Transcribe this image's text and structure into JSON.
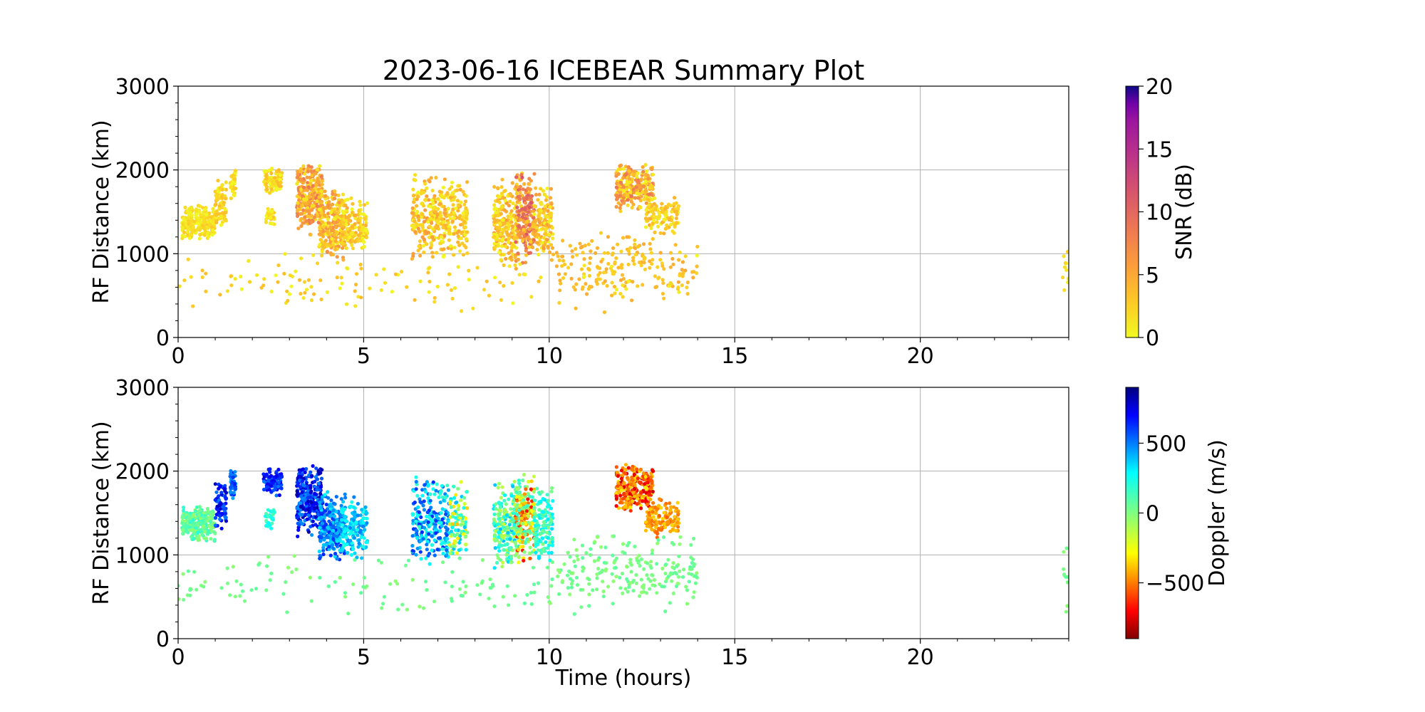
{
  "chart_data": [
    {
      "type": "scatter",
      "title": "2023-06-16 ICEBEAR Summary Plot",
      "ylabel": "RF Distance (km)",
      "xlim": [
        0,
        24
      ],
      "ylim": [
        0,
        3000
      ],
      "xticks": [
        "0",
        "5",
        "10",
        "15",
        "20"
      ],
      "yticks": [
        "0",
        "1000",
        "2000",
        "3000"
      ],
      "grid": true,
      "colorbar": {
        "label": "SNR (dB)",
        "range": [
          0,
          20
        ],
        "ticks": [
          "0",
          "5",
          "10",
          "15",
          "20"
        ],
        "colormap": "plasma_r"
      },
      "clusters": [
        {
          "x": [
            0.1,
            1.0
          ],
          "y": [
            1150,
            1600
          ],
          "n": 220,
          "value": [
            0,
            3
          ]
        },
        {
          "x": [
            1.0,
            1.3
          ],
          "y": [
            1300,
            1900
          ],
          "n": 70,
          "value": [
            0,
            4
          ]
        },
        {
          "x": [
            1.4,
            1.55
          ],
          "y": [
            1650,
            2050
          ],
          "n": 40,
          "value": [
            0,
            3
          ]
        },
        {
          "x": [
            2.3,
            2.8
          ],
          "y": [
            1700,
            2050
          ],
          "n": 90,
          "value": [
            0,
            4
          ]
        },
        {
          "x": [
            2.35,
            2.6
          ],
          "y": [
            1300,
            1600
          ],
          "n": 25,
          "value": [
            0,
            3
          ]
        },
        {
          "x": [
            3.2,
            3.9
          ],
          "y": [
            1200,
            2100
          ],
          "n": 300,
          "value": [
            1,
            9
          ]
        },
        {
          "x": [
            3.8,
            4.5
          ],
          "y": [
            900,
            1800
          ],
          "n": 260,
          "value": [
            0,
            7
          ]
        },
        {
          "x": [
            4.4,
            5.1
          ],
          "y": [
            950,
            1700
          ],
          "n": 140,
          "value": [
            0,
            5
          ]
        },
        {
          "x": [
            6.3,
            7.3
          ],
          "y": [
            850,
            2000
          ],
          "n": 240,
          "value": [
            0,
            6
          ]
        },
        {
          "x": [
            7.3,
            7.8
          ],
          "y": [
            950,
            1900
          ],
          "n": 110,
          "value": [
            0,
            5
          ]
        },
        {
          "x": [
            8.5,
            9.2
          ],
          "y": [
            800,
            1900
          ],
          "n": 220,
          "value": [
            0,
            6
          ]
        },
        {
          "x": [
            9.1,
            9.6
          ],
          "y": [
            850,
            2000
          ],
          "n": 200,
          "value": [
            2,
            12
          ]
        },
        {
          "x": [
            9.6,
            10.1
          ],
          "y": [
            900,
            1850
          ],
          "n": 140,
          "value": [
            0,
            6
          ]
        },
        {
          "x": [
            11.8,
            12.8
          ],
          "y": [
            1500,
            2100
          ],
          "n": 260,
          "value": [
            0,
            9
          ]
        },
        {
          "x": [
            12.6,
            13.5
          ],
          "y": [
            1200,
            1700
          ],
          "n": 120,
          "value": [
            0,
            5
          ]
        },
        {
          "x": [
            10.2,
            14.0
          ],
          "y": [
            400,
            1300
          ],
          "n": 180,
          "value": [
            2,
            5
          ]
        },
        {
          "x": [
            0.0,
            14.0
          ],
          "y": [
            250,
            1050
          ],
          "n": 150,
          "value": [
            0,
            4
          ]
        },
        {
          "x": [
            23.8,
            24.0
          ],
          "y": [
            300,
            1300
          ],
          "n": 10,
          "value": [
            0,
            3
          ]
        }
      ]
    },
    {
      "type": "scatter",
      "xlabel": "Time (hours)",
      "ylabel": "RF Distance (km)",
      "xlim": [
        0,
        24
      ],
      "ylim": [
        0,
        3000
      ],
      "xticks": [
        "0",
        "5",
        "10",
        "15",
        "20"
      ],
      "yticks": [
        "0",
        "1000",
        "2000",
        "3000"
      ],
      "grid": true,
      "colorbar": {
        "label": "Doppler (m/s)",
        "range": [
          -900,
          900
        ],
        "ticks": [
          "−500",
          "0",
          "500"
        ],
        "tick_values": [
          -500,
          0,
          500
        ],
        "colormap": "jet_r"
      },
      "clusters": [
        {
          "x": [
            0.1,
            1.0
          ],
          "y": [
            1150,
            1600
          ],
          "n": 220,
          "value": [
            -50,
            200
          ]
        },
        {
          "x": [
            1.0,
            1.3
          ],
          "y": [
            1300,
            1900
          ],
          "n": 70,
          "value": [
            500,
            800
          ]
        },
        {
          "x": [
            1.4,
            1.55
          ],
          "y": [
            1650,
            2050
          ],
          "n": 40,
          "value": [
            400,
            650
          ]
        },
        {
          "x": [
            2.3,
            2.8
          ],
          "y": [
            1700,
            2050
          ],
          "n": 90,
          "value": [
            500,
            750
          ]
        },
        {
          "x": [
            2.35,
            2.6
          ],
          "y": [
            1300,
            1600
          ],
          "n": 25,
          "value": [
            100,
            300
          ]
        },
        {
          "x": [
            3.2,
            3.9
          ],
          "y": [
            1200,
            2100
          ],
          "n": 300,
          "value": [
            450,
            850
          ]
        },
        {
          "x": [
            3.8,
            4.5
          ],
          "y": [
            900,
            1800
          ],
          "n": 260,
          "value": [
            300,
            650
          ]
        },
        {
          "x": [
            4.4,
            5.1
          ],
          "y": [
            950,
            1700
          ],
          "n": 140,
          "value": [
            200,
            500
          ]
        },
        {
          "x": [
            6.3,
            7.3
          ],
          "y": [
            850,
            2000
          ],
          "n": 240,
          "value": [
            150,
            650
          ]
        },
        {
          "x": [
            7.3,
            7.8
          ],
          "y": [
            950,
            1900
          ],
          "n": 110,
          "value": [
            -400,
            400
          ]
        },
        {
          "x": [
            8.5,
            9.2
          ],
          "y": [
            800,
            1900
          ],
          "n": 220,
          "value": [
            -200,
            400
          ]
        },
        {
          "x": [
            9.1,
            9.6
          ],
          "y": [
            850,
            2000
          ],
          "n": 200,
          "value": [
            -700,
            200
          ]
        },
        {
          "x": [
            9.6,
            10.1
          ],
          "y": [
            900,
            1850
          ],
          "n": 140,
          "value": [
            0,
            350
          ]
        },
        {
          "x": [
            11.8,
            12.8
          ],
          "y": [
            1500,
            2100
          ],
          "n": 260,
          "value": [
            -800,
            -300
          ]
        },
        {
          "x": [
            12.6,
            13.5
          ],
          "y": [
            1200,
            1700
          ],
          "n": 120,
          "value": [
            -550,
            -350
          ]
        },
        {
          "x": [
            10.2,
            14.0
          ],
          "y": [
            400,
            1300
          ],
          "n": 180,
          "value": [
            -40,
            80
          ]
        },
        {
          "x": [
            0.0,
            14.0
          ],
          "y": [
            250,
            1050
          ],
          "n": 150,
          "value": [
            -40,
            80
          ]
        },
        {
          "x": [
            23.8,
            24.0
          ],
          "y": [
            300,
            1300
          ],
          "n": 10,
          "value": [
            -40,
            80
          ]
        }
      ]
    }
  ]
}
